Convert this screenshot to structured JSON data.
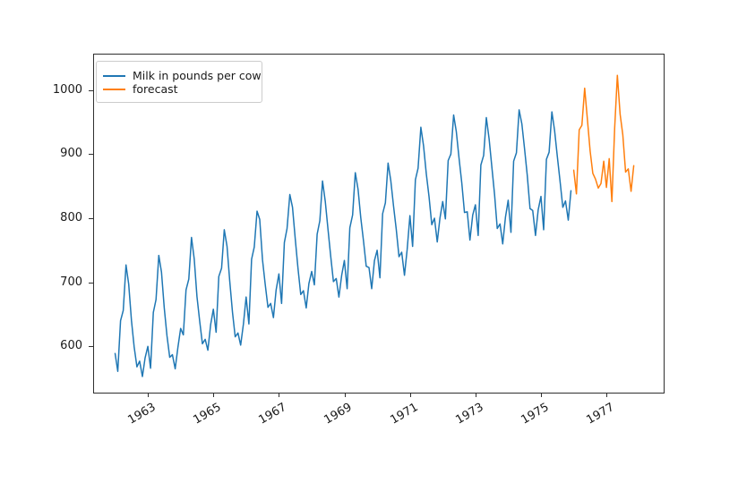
{
  "figure": {
    "background_color": "#ffffff",
    "axes_edge_color": "#2f2f2f",
    "text_color": "#1a1a1a"
  },
  "chart_data": {
    "type": "line",
    "title": "",
    "xlabel": "",
    "ylabel": "",
    "grid": false,
    "legend_position": "upper left",
    "x_axis": {
      "unit": "year",
      "tick_years": [
        1963,
        1965,
        1967,
        1969,
        1971,
        1973,
        1975,
        1977
      ],
      "tick_labels": [
        "1963",
        "1965",
        "1967",
        "1969",
        "1971",
        "1973",
        "1975",
        "1977"
      ],
      "tick_label_rotation_deg": 30,
      "xlim_years": [
        1961.3,
        1978.8
      ]
    },
    "y_axis": {
      "tick_values": [
        600,
        700,
        800,
        900,
        1000
      ],
      "tick_labels": [
        "600",
        "700",
        "800",
        "900",
        "1000"
      ],
      "ylim": [
        528,
        1057
      ]
    },
    "series": [
      {
        "name": "Milk in pounds per cow",
        "key": "milk",
        "color": "#1f77b4",
        "frequency": "monthly",
        "start_year": 1962,
        "start_month": 1,
        "values": [
          589,
          561,
          640,
          656,
          727,
          697,
          640,
          599,
          568,
          577,
          553,
          582,
          600,
          566,
          653,
          673,
          742,
          716,
          660,
          617,
          583,
          587,
          565,
          598,
          628,
          618,
          688,
          705,
          770,
          736,
          678,
          639,
          604,
          611,
          594,
          634,
          658,
          622,
          709,
          722,
          782,
          756,
          702,
          653,
          615,
          621,
          602,
          635,
          677,
          635,
          736,
          755,
          811,
          798,
          735,
          697,
          661,
          667,
          645,
          688,
          713,
          667,
          762,
          784,
          837,
          817,
          767,
          722,
          681,
          687,
          660,
          698,
          717,
          696,
          775,
          796,
          858,
          826,
          783,
          740,
          701,
          706,
          677,
          711,
          734,
          690,
          785,
          805,
          871,
          845,
          801,
          764,
          725,
          723,
          690,
          734,
          750,
          707,
          807,
          824,
          886,
          859,
          819,
          783,
          740,
          747,
          711,
          751,
          804,
          756,
          860,
          878,
          942,
          913,
          869,
          834,
          790,
          800,
          763,
          800,
          826,
          799,
          890,
          900,
          961,
          935,
          894,
          855,
          809,
          810,
          766,
          805,
          821,
          773,
          883,
          898,
          957,
          924,
          881,
          837,
          784,
          791,
          760,
          802,
          828,
          778,
          889,
          902,
          969,
          947,
          908,
          867,
          815,
          812,
          773,
          813,
          834,
          782,
          892,
          903,
          966,
          937,
          896,
          858,
          817,
          827,
          797,
          843
        ]
      },
      {
        "name": "forecast",
        "key": "forecast",
        "color": "#ff7f0e",
        "frequency": "monthly",
        "start_year": 1976,
        "start_month": 1,
        "values": [
          875,
          838,
          938,
          945,
          1003,
          955,
          905,
          870,
          861,
          847,
          854,
          889,
          848,
          893,
          826,
          941,
          1023,
          962,
          930,
          872,
          877,
          842,
          882
        ]
      }
    ]
  }
}
